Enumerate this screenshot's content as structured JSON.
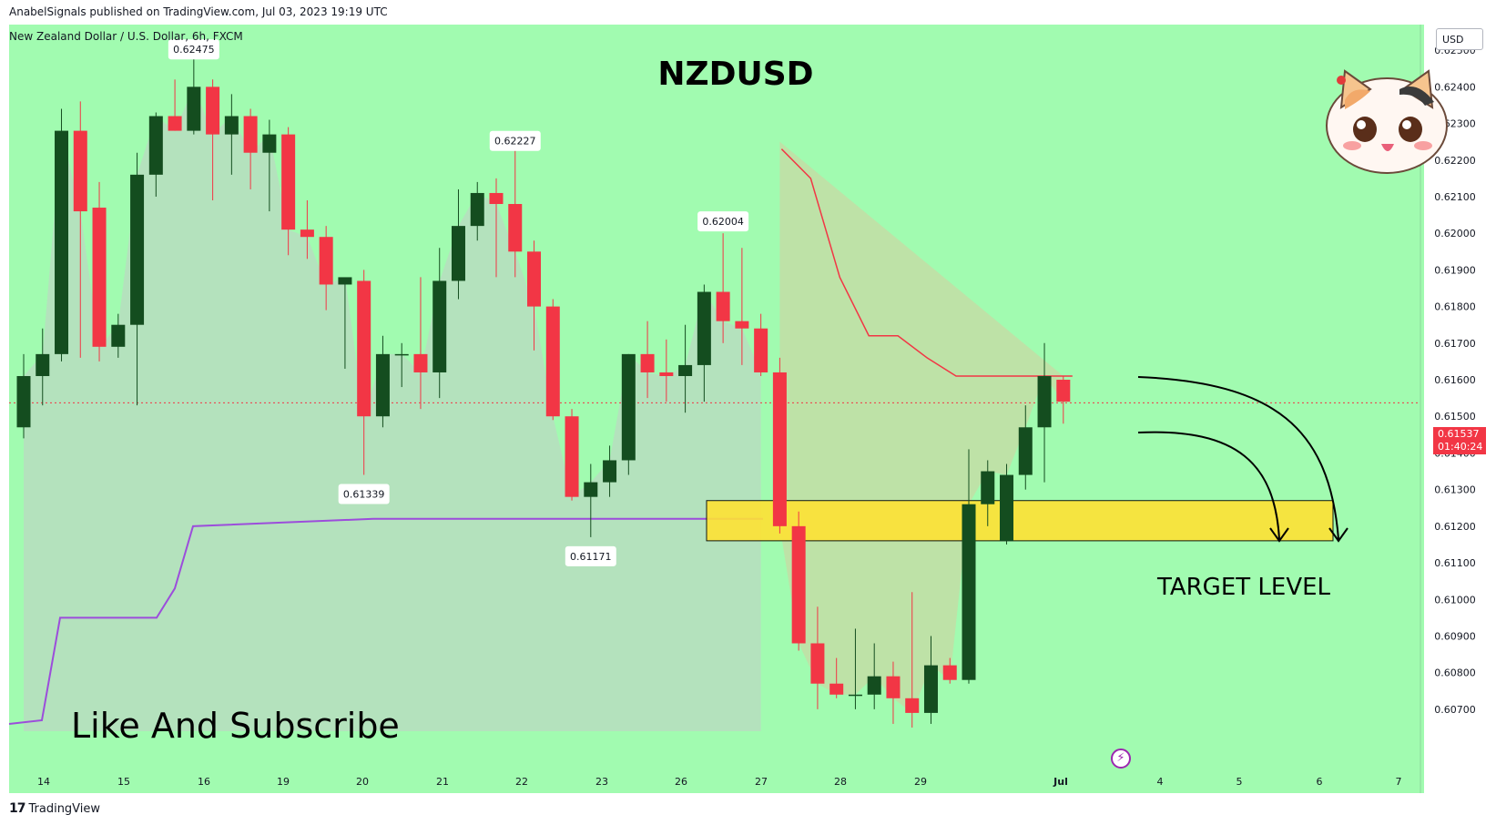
{
  "header": {
    "publish_line": "AnabelSignals published on TradingView.com, Jul 03, 2023 19:19 UTC",
    "symbol_line": "New Zealand Dollar / U.S. Dollar, 6h, FXCM"
  },
  "footer": {
    "brand": "TradingView",
    "logo_text": "17"
  },
  "overlay_text": {
    "title": "NZDUSD",
    "target": "TARGET LEVEL",
    "cta": "Like And Subscribe"
  },
  "axis": {
    "currency": "USD",
    "last_price": "0.61537",
    "countdown": "01:40:24"
  },
  "colors": {
    "background": "#a1fbb0",
    "up": "#144d1f",
    "down": "#f23645",
    "target_zone": "#ffe234",
    "resistance_line": "#f23645",
    "support_line": "#9c4ddb",
    "area_fill": "#b9dcc0"
  },
  "chart_data": {
    "type": "candlestick",
    "title": "NZDUSD",
    "timeframe": "6h",
    "ylim": [
      0.6064,
      0.6257
    ],
    "y_ticks": [
      "0.62500",
      "0.62400",
      "0.62300",
      "0.62200",
      "0.62100",
      "0.62000",
      "0.61900",
      "0.61800",
      "0.61700",
      "0.61600",
      "0.61500",
      "0.61400",
      "0.61300",
      "0.61200",
      "0.61100",
      "0.61000",
      "0.60900",
      "0.60800",
      "0.60700"
    ],
    "x_ticks": [
      "14",
      "15",
      "16",
      "19",
      "20",
      "21",
      "22",
      "23",
      "26",
      "27",
      "28",
      "29",
      "Jul",
      "4",
      "5",
      "6",
      "7"
    ],
    "candles": [
      {
        "o": 0.6147,
        "h": 0.6167,
        "l": 0.6144,
        "c": 0.6161
      },
      {
        "o": 0.6161,
        "h": 0.6174,
        "l": 0.6153,
        "c": 0.6167
      },
      {
        "o": 0.6167,
        "h": 0.6234,
        "l": 0.6165,
        "c": 0.6228
      },
      {
        "o": 0.6228,
        "h": 0.6236,
        "l": 0.6166,
        "c": 0.6206
      },
      {
        "o": 0.6207,
        "h": 0.6214,
        "l": 0.6165,
        "c": 0.6169
      },
      {
        "o": 0.6169,
        "h": 0.6178,
        "l": 0.6166,
        "c": 0.6175
      },
      {
        "o": 0.6175,
        "h": 0.6222,
        "l": 0.6153,
        "c": 0.6216
      },
      {
        "o": 0.6216,
        "h": 0.6233,
        "l": 0.621,
        "c": 0.6232
      },
      {
        "o": 0.6232,
        "h": 0.6242,
        "l": 0.6228,
        "c": 0.6228
      },
      {
        "o": 0.6228,
        "h": 0.6248,
        "l": 0.6227,
        "c": 0.624
      },
      {
        "o": 0.624,
        "h": 0.6242,
        "l": 0.6209,
        "c": 0.6227
      },
      {
        "o": 0.6227,
        "h": 0.6238,
        "l": 0.6216,
        "c": 0.6232
      },
      {
        "o": 0.6232,
        "h": 0.6234,
        "l": 0.6212,
        "c": 0.6222
      },
      {
        "o": 0.6222,
        "h": 0.6231,
        "l": 0.6206,
        "c": 0.6227
      },
      {
        "o": 0.6227,
        "h": 0.6229,
        "l": 0.6194,
        "c": 0.6201
      },
      {
        "o": 0.6201,
        "h": 0.6209,
        "l": 0.6193,
        "c": 0.6199
      },
      {
        "o": 0.6199,
        "h": 0.6202,
        "l": 0.6179,
        "c": 0.6186
      },
      {
        "o": 0.6186,
        "h": 0.6187,
        "l": 0.6163,
        "c": 0.6188
      },
      {
        "o": 0.6187,
        "h": 0.619,
        "l": 0.6134,
        "c": 0.615
      },
      {
        "o": 0.615,
        "h": 0.6172,
        "l": 0.6147,
        "c": 0.6167
      },
      {
        "o": 0.6167,
        "h": 0.617,
        "l": 0.6158,
        "c": 0.6167
      },
      {
        "o": 0.6167,
        "h": 0.6188,
        "l": 0.6152,
        "c": 0.6162
      },
      {
        "o": 0.6162,
        "h": 0.6196,
        "l": 0.6155,
        "c": 0.6187
      },
      {
        "o": 0.6187,
        "h": 0.6212,
        "l": 0.6182,
        "c": 0.6202
      },
      {
        "o": 0.6202,
        "h": 0.6214,
        "l": 0.6198,
        "c": 0.6211
      },
      {
        "o": 0.6211,
        "h": 0.6215,
        "l": 0.6188,
        "c": 0.6208
      },
      {
        "o": 0.6208,
        "h": 0.6223,
        "l": 0.6188,
        "c": 0.6195
      },
      {
        "o": 0.6195,
        "h": 0.6198,
        "l": 0.6168,
        "c": 0.618
      },
      {
        "o": 0.618,
        "h": 0.6182,
        "l": 0.6149,
        "c": 0.615
      },
      {
        "o": 0.615,
        "h": 0.6152,
        "l": 0.6127,
        "c": 0.6128
      },
      {
        "o": 0.6128,
        "h": 0.6137,
        "l": 0.6117,
        "c": 0.6132
      },
      {
        "o": 0.6132,
        "h": 0.6142,
        "l": 0.6128,
        "c": 0.6138
      },
      {
        "o": 0.6138,
        "h": 0.6167,
        "l": 0.6134,
        "c": 0.6167
      },
      {
        "o": 0.6167,
        "h": 0.6176,
        "l": 0.6155,
        "c": 0.6162
      },
      {
        "o": 0.6162,
        "h": 0.6171,
        "l": 0.6154,
        "c": 0.6161
      },
      {
        "o": 0.6161,
        "h": 0.6175,
        "l": 0.6151,
        "c": 0.6164
      },
      {
        "o": 0.6164,
        "h": 0.6186,
        "l": 0.6154,
        "c": 0.6184
      },
      {
        "o": 0.6184,
        "h": 0.62,
        "l": 0.617,
        "c": 0.6176
      },
      {
        "o": 0.6176,
        "h": 0.6196,
        "l": 0.6164,
        "c": 0.6174
      },
      {
        "o": 0.6174,
        "h": 0.6178,
        "l": 0.6161,
        "c": 0.6162
      },
      {
        "o": 0.6162,
        "h": 0.6166,
        "l": 0.6118,
        "c": 0.612
      },
      {
        "o": 0.612,
        "h": 0.6124,
        "l": 0.6086,
        "c": 0.6088
      },
      {
        "o": 0.6088,
        "h": 0.6098,
        "l": 0.607,
        "c": 0.6077
      },
      {
        "o": 0.6077,
        "h": 0.6084,
        "l": 0.6073,
        "c": 0.6074
      },
      {
        "o": 0.6074,
        "h": 0.6092,
        "l": 0.607,
        "c": 0.6074
      },
      {
        "o": 0.6074,
        "h": 0.6088,
        "l": 0.607,
        "c": 0.6079
      },
      {
        "o": 0.6079,
        "h": 0.6083,
        "l": 0.6066,
        "c": 0.6073
      },
      {
        "o": 0.6073,
        "h": 0.6102,
        "l": 0.6065,
        "c": 0.6069
      },
      {
        "o": 0.6069,
        "h": 0.609,
        "l": 0.6066,
        "c": 0.6082
      },
      {
        "o": 0.6082,
        "h": 0.6084,
        "l": 0.6077,
        "c": 0.6078
      },
      {
        "o": 0.6078,
        "h": 0.6141,
        "l": 0.6077,
        "c": 0.6126
      },
      {
        "o": 0.6126,
        "h": 0.6138,
        "l": 0.612,
        "c": 0.6135
      },
      {
        "o": 0.6116,
        "h": 0.6137,
        "l": 0.6115,
        "c": 0.6134
      },
      {
        "o": 0.6134,
        "h": 0.6153,
        "l": 0.613,
        "c": 0.6147
      },
      {
        "o": 0.6147,
        "h": 0.617,
        "l": 0.6132,
        "c": 0.6161
      },
      {
        "o": 0.616,
        "h": 0.6161,
        "l": 0.6148,
        "c": 0.6154
      }
    ],
    "price_labels": [
      "0.62475",
      "0.62227",
      "0.62004",
      "0.61339",
      "0.61171"
    ],
    "target_zone": [
      0.6118,
      0.6125
    ],
    "resistance_profile": [
      [
        0.6223
      ],
      [
        0.6215
      ],
      [
        0.6188
      ],
      [
        0.6172
      ],
      [
        0.6172
      ],
      [
        0.6166
      ],
      [
        0.6161
      ],
      [
        0.6161
      ],
      [
        0.6161
      ],
      [
        0.6161
      ],
      [
        0.6161
      ]
    ],
    "support_profile": [
      0.6066,
      0.6067,
      0.6095,
      0.6095,
      0.6095,
      0.6103,
      0.612,
      0.6122,
      0.6122,
      0.6122
    ]
  }
}
